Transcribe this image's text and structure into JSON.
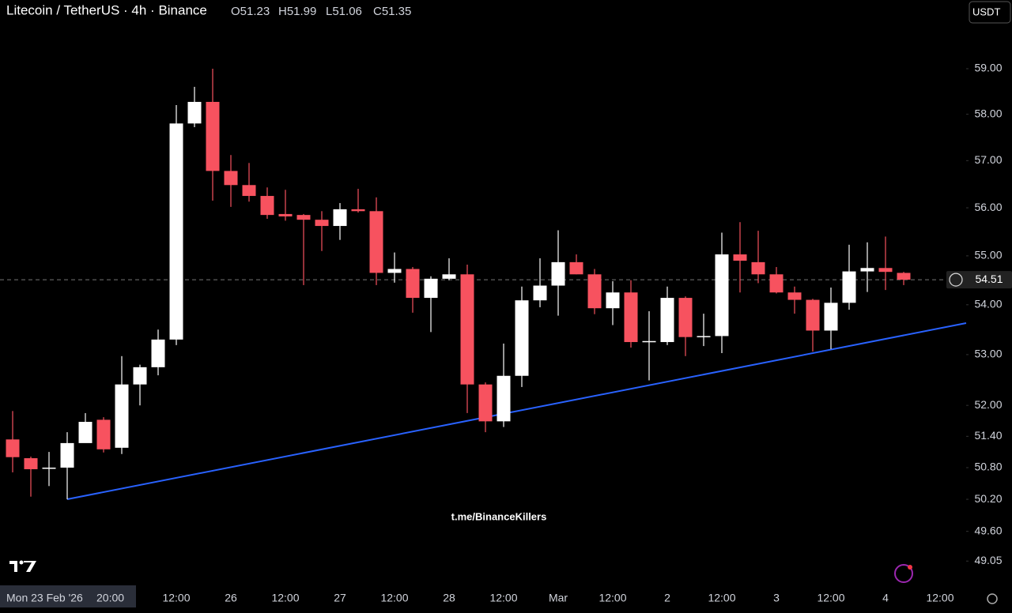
{
  "chart_data": {
    "type": "candlestick",
    "title": "Litecoin / TetherUS · 4h · Binance",
    "ohlc_legend": [
      "O51.23",
      "H51.99",
      "L51.06",
      "C51.35"
    ],
    "currency": "USDT",
    "watermark": "t.me/BinanceKillers",
    "crosshair_date": "Mon 23 Feb '26",
    "crosshair_time": "20:00",
    "x_labels": [
      "12:00",
      "26",
      "12:00",
      "27",
      "12:00",
      "28",
      "12:00",
      "Mar",
      "12:00",
      "2",
      "12:00",
      "3",
      "12:00",
      "4",
      "12:00"
    ],
    "open": [
      51.34,
      50.98,
      50.8,
      50.8,
      51.27,
      51.72,
      51.18,
      52.41,
      52.75,
      53.3,
      57.8,
      58.27,
      56.78,
      56.48,
      56.25,
      55.87,
      55.85,
      55.75,
      55.62,
      55.97,
      55.93,
      54.65,
      54.73,
      54.14,
      54.53,
      54.62,
      52.41,
      51.69,
      52.58,
      54.09,
      54.39,
      54.87,
      54.62,
      53.93,
      54.25,
      53.25,
      53.25,
      54.14,
      53.35,
      53.37,
      55.03,
      54.87,
      54.62,
      54.25,
      54.1,
      53.48,
      54.04,
      54.68,
      54.75,
      54.65
    ],
    "high": [
      51.89,
      51.01,
      51.1,
      51.48,
      51.85,
      51.77,
      52.97,
      52.8,
      53.5,
      58.2,
      58.6,
      59.0,
      57.12,
      56.95,
      56.43,
      56.38,
      55.87,
      55.93,
      56.1,
      56.4,
      56.22,
      55.07,
      54.77,
      54.58,
      54.95,
      54.82,
      52.45,
      53.22,
      54.37,
      54.95,
      55.53,
      55.03,
      54.73,
      54.48,
      54.5,
      53.87,
      54.37,
      54.17,
      53.82,
      55.48,
      55.7,
      55.52,
      54.77,
      54.37,
      54.12,
      54.35,
      55.23,
      55.28,
      55.4,
      54.67
    ],
    "low": [
      50.71,
      50.25,
      50.45,
      50.2,
      51.28,
      51.09,
      51.06,
      52.0,
      52.59,
      53.19,
      57.72,
      56.15,
      56.02,
      56.13,
      55.77,
      55.73,
      54.4,
      55.1,
      55.33,
      55.9,
      54.4,
      54.45,
      53.84,
      53.45,
      54.5,
      51.85,
      51.48,
      51.58,
      52.36,
      53.95,
      53.78,
      54.62,
      53.81,
      53.59,
      53.14,
      52.49,
      53.19,
      52.97,
      53.17,
      53.03,
      54.25,
      54.44,
      54.23,
      53.82,
      53.06,
      53.11,
      53.9,
      54.26,
      54.3,
      54.4
    ],
    "close": [
      51.0,
      50.77,
      50.8,
      51.27,
      51.68,
      51.15,
      52.41,
      52.75,
      53.3,
      57.8,
      58.27,
      56.78,
      56.48,
      56.25,
      55.85,
      55.82,
      55.75,
      55.62,
      55.97,
      55.93,
      54.65,
      54.73,
      54.14,
      54.53,
      54.62,
      52.41,
      51.69,
      52.58,
      54.09,
      54.39,
      54.87,
      54.62,
      53.93,
      54.25,
      53.25,
      53.27,
      54.14,
      53.35,
      53.37,
      55.03,
      54.9,
      54.62,
      54.25,
      54.1,
      53.48,
      54.04,
      54.68,
      54.75,
      54.67,
      54.51
    ],
    "up_color": "#ffffff",
    "down_color": "#f7525f",
    "last_price": 54.51,
    "log_scale": true,
    "ylim": [
      48.62,
      60.54
    ],
    "yticks": [
      {
        "value": 59,
        "label": "59.00"
      },
      {
        "value": 58,
        "label": "58.00"
      },
      {
        "value": 57,
        "label": "57.00"
      },
      {
        "value": 56,
        "label": "56.00"
      },
      {
        "value": 55,
        "label": "55.00"
      },
      {
        "value": 54,
        "label": "54.00"
      },
      {
        "value": 53,
        "label": "53.00"
      },
      {
        "value": 52,
        "label": "52.00"
      },
      {
        "value": 51.4,
        "label": "51.40"
      },
      {
        "value": 50.8,
        "label": "50.80"
      },
      {
        "value": 50.2,
        "label": "50.20"
      },
      {
        "value": 49.6,
        "label": "49.60"
      },
      {
        "value": 49.05,
        "label": "49.05"
      }
    ]
  }
}
